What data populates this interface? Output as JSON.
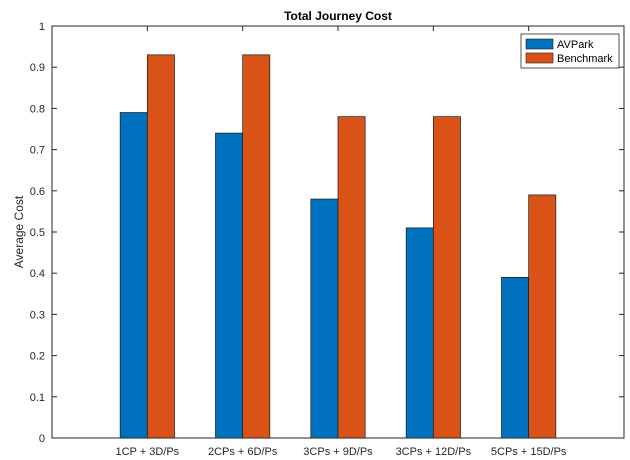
{
  "chart_data": {
    "type": "bar",
    "title": "Total Journey Cost",
    "xlabel": "",
    "ylabel": "Average Cost",
    "ylim": [
      0,
      1
    ],
    "yticks": [
      0,
      0.1,
      0.2,
      0.3,
      0.4,
      0.5,
      0.6,
      0.7,
      0.8,
      0.9,
      1
    ],
    "ytick_labels": [
      "0",
      "0.1",
      "0.2",
      "0.3",
      "0.4",
      "0.5",
      "0.6",
      "0.7",
      "0.8",
      "0.9",
      "1"
    ],
    "categories": [
      "1CP + 3D/Ps",
      "2CPs + 6D/Ps",
      "3CPs + 9D/Ps",
      "3CPs + 12D/Ps",
      "5CPs + 15D/Ps"
    ],
    "series": [
      {
        "name": "AVPark",
        "color": "#0072BD",
        "values": [
          0.79,
          0.74,
          0.58,
          0.51,
          0.39
        ]
      },
      {
        "name": "Benchmark",
        "color": "#D95319",
        "values": [
          0.93,
          0.93,
          0.78,
          0.78,
          0.59
        ]
      }
    ],
    "grid": false,
    "legend_position": "top-right"
  }
}
